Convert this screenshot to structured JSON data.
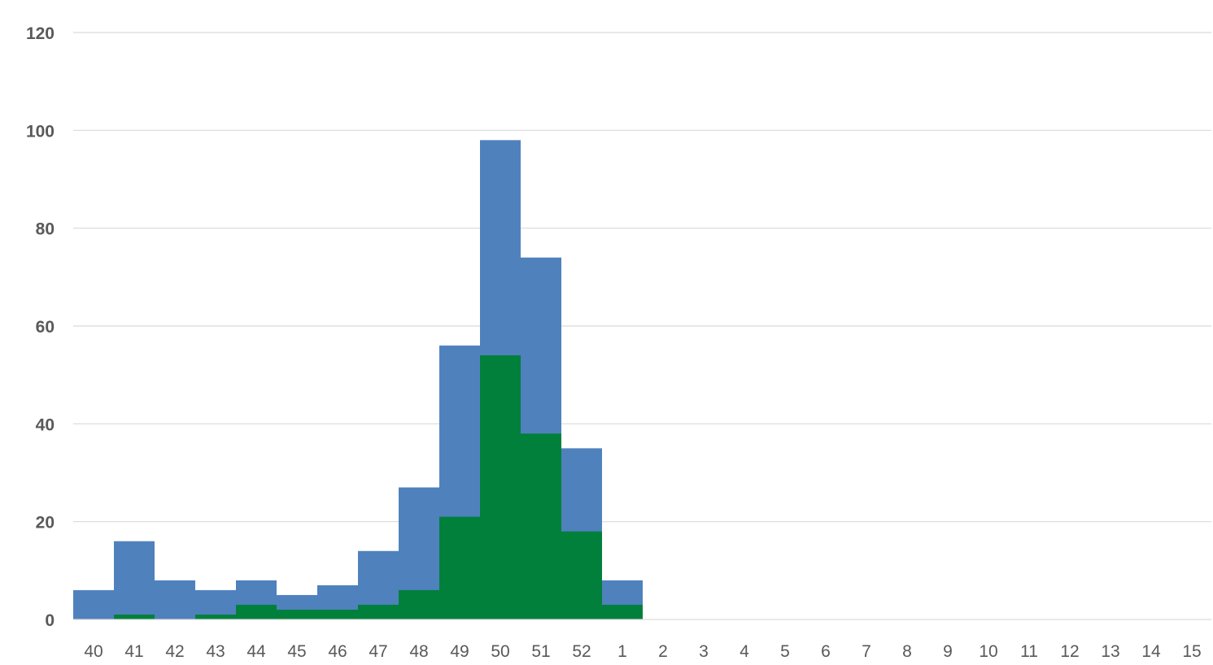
{
  "chart_data": {
    "type": "bar",
    "stacked_overlay": true,
    "categories": [
      "40",
      "41",
      "42",
      "43",
      "44",
      "45",
      "46",
      "47",
      "48",
      "49",
      "50",
      "51",
      "52",
      "1",
      "2",
      "3",
      "4",
      "5",
      "6",
      "7",
      "8",
      "9",
      "10",
      "11",
      "12",
      "13",
      "14",
      "15"
    ],
    "series": [
      {
        "color": "#4f81bd",
        "values": [
          6,
          16,
          8,
          6,
          8,
          5,
          7,
          14,
          27,
          56,
          98,
          74,
          35,
          8,
          0,
          0,
          0,
          0,
          0,
          0,
          0,
          0,
          0,
          0,
          0,
          0,
          0,
          0
        ]
      },
      {
        "color": "#00803a",
        "values": [
          0,
          1,
          0,
          1,
          3,
          2,
          2,
          3,
          6,
          21,
          54,
          38,
          18,
          3,
          0,
          0,
          0,
          0,
          0,
          0,
          0,
          0,
          0,
          0,
          0,
          0,
          0,
          0
        ]
      }
    ],
    "y_ticks": [
      "0",
      "20",
      "40",
      "60",
      "80",
      "100",
      "120"
    ],
    "ylim": [
      0,
      120
    ],
    "grid": true,
    "legend": "none",
    "title": "",
    "xlabel": "",
    "ylabel": ""
  }
}
